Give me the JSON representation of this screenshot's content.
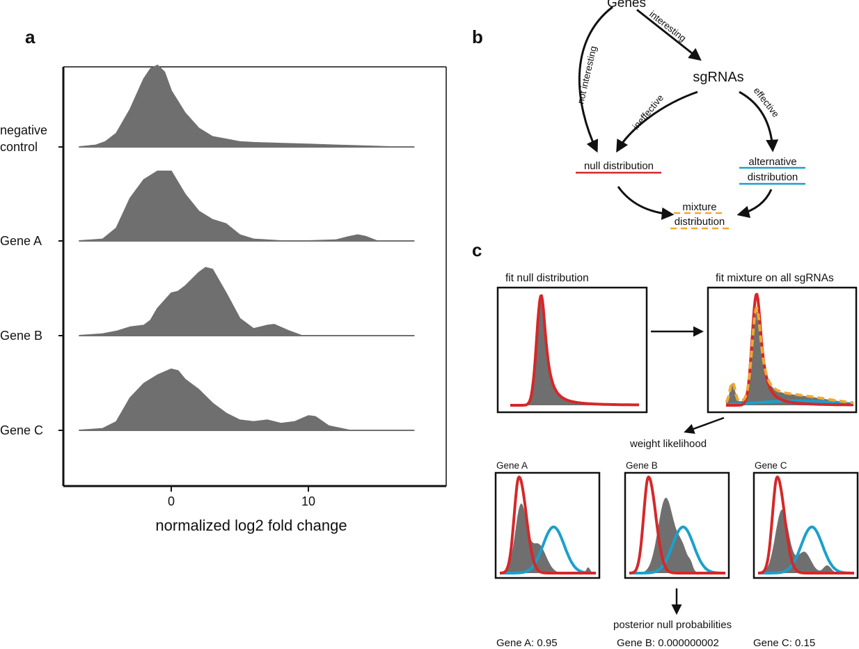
{
  "panel_a": {
    "letter": "a",
    "chart_data": {
      "type": "area",
      "title": "",
      "xlabel": "normalized log2 fold change",
      "ylabel": "",
      "xlim": [
        -7,
        18
      ],
      "x_ticks": [
        "0",
        "10"
      ],
      "grid": false,
      "series": [
        {
          "name": "negative\ncontrol",
          "x": [
            -6.7,
            -5.5,
            -4.8,
            -4.0,
            -3.0,
            -2.0,
            -1.5,
            -1.0,
            -0.5,
            0.0,
            1.0,
            2.0,
            3.0,
            4.0,
            5.0,
            6.0,
            8.0,
            10.0,
            12.0,
            14.0,
            16.0,
            17.7
          ],
          "y": [
            0.0,
            0.02,
            0.06,
            0.16,
            0.44,
            0.8,
            0.92,
            0.96,
            0.88,
            0.66,
            0.4,
            0.22,
            0.12,
            0.09,
            0.06,
            0.05,
            0.04,
            0.03,
            0.02,
            0.01,
            0.0,
            0.0
          ]
        },
        {
          "name": "Gene A",
          "x": [
            -6.7,
            -5.0,
            -4.0,
            -3.0,
            -2.0,
            -1.0,
            0.0,
            1.0,
            2.0,
            3.0,
            4.0,
            5.0,
            6.0,
            8.0,
            10.0,
            12.0,
            13.0,
            13.6,
            14.2,
            15.0,
            17.7
          ],
          "y": [
            0.0,
            0.02,
            0.15,
            0.5,
            0.72,
            0.82,
            0.82,
            0.55,
            0.35,
            0.25,
            0.2,
            0.07,
            0.02,
            0.0,
            0.0,
            0.01,
            0.05,
            0.07,
            0.05,
            0.0,
            0.0
          ]
        },
        {
          "name": "Gene B",
          "x": [
            -6.7,
            -5.0,
            -4.0,
            -3.0,
            -2.0,
            -1.5,
            -1.0,
            0.0,
            0.5,
            1.0,
            2.0,
            2.5,
            3.0,
            4.0,
            5.0,
            6.0,
            7.0,
            7.5,
            8.5,
            9.5,
            17.7
          ],
          "y": [
            0.0,
            0.02,
            0.05,
            0.1,
            0.12,
            0.18,
            0.32,
            0.5,
            0.52,
            0.58,
            0.74,
            0.8,
            0.78,
            0.5,
            0.2,
            0.08,
            0.12,
            0.13,
            0.06,
            0.0,
            0.0
          ]
        },
        {
          "name": "Gene C",
          "x": [
            -6.7,
            -5.0,
            -4.0,
            -3.0,
            -2.0,
            -1.0,
            0.0,
            0.5,
            1.0,
            2.0,
            3.0,
            4.0,
            5.0,
            6.0,
            7.0,
            8.0,
            9.0,
            10.0,
            10.5,
            11.5,
            13.0,
            17.7
          ],
          "y": [
            0.0,
            0.02,
            0.1,
            0.38,
            0.55,
            0.65,
            0.72,
            0.7,
            0.6,
            0.48,
            0.32,
            0.2,
            0.12,
            0.1,
            0.12,
            0.08,
            0.1,
            0.17,
            0.16,
            0.05,
            0.0,
            0.0
          ]
        }
      ]
    }
  },
  "panel_b": {
    "letter": "b",
    "nodes": {
      "genes": "Genes",
      "sgrnas": "sgRNAs",
      "null_line1": "null distribution",
      "alt_line1": "alternative",
      "alt_line2": "distribution",
      "mix_line1": "mixture",
      "mix_line2": "distribution"
    },
    "edges": {
      "not_interesting": "not interesting",
      "interesting": "interesting",
      "ineffective": "ineffective",
      "effective": "effective"
    }
  },
  "panel_c": {
    "letter": "c",
    "titles": {
      "fit_null": "fit null distribution",
      "fit_mixture": "fit mixture on all sgRNAs",
      "weight": "weight likelihood",
      "posterior": "posterior null probabilities"
    },
    "genes": [
      {
        "label": "Gene A",
        "probability": "Gene A: 0.95"
      },
      {
        "label": "Gene B",
        "probability": "Gene B: 0.000000002"
      },
      {
        "label": "Gene C",
        "probability": "Gene C: 0.15"
      }
    ]
  },
  "colors": {
    "null": "#d62728",
    "alternative": "#1aa0cc",
    "mixture": "#f0a830",
    "density": "#6f6f6f"
  }
}
